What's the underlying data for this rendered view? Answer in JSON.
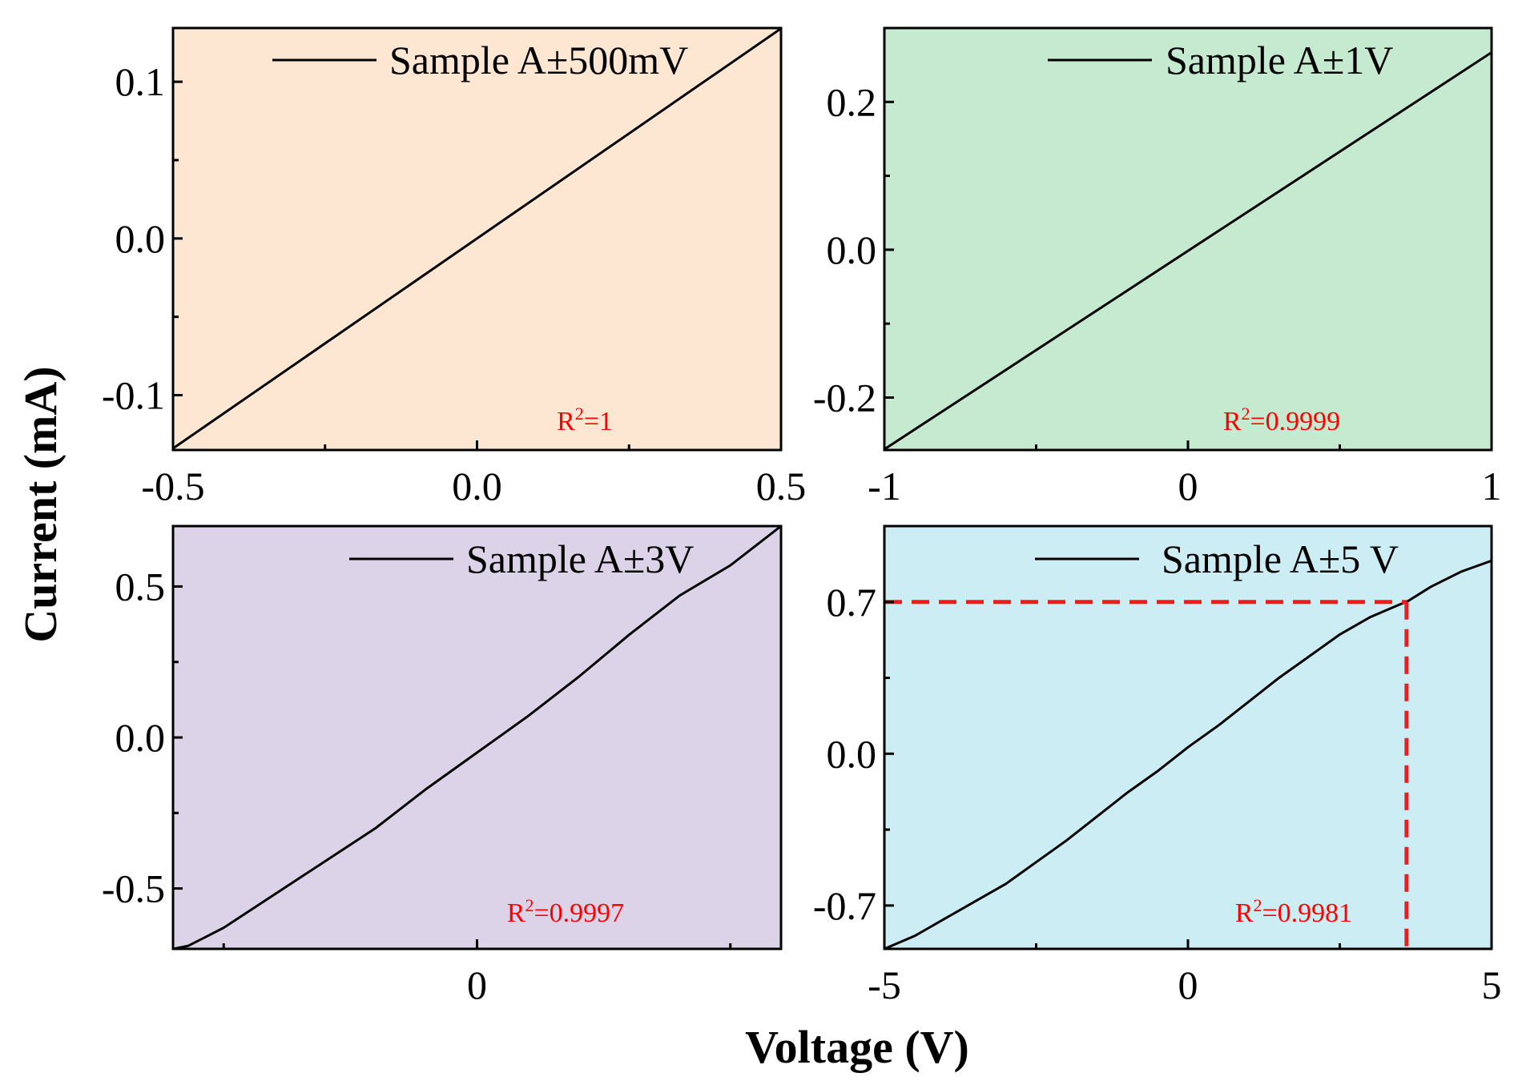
{
  "figure": {
    "xlabel": "Voltage (V)",
    "ylabel": "Current (mA)"
  },
  "chart_data": [
    {
      "type": "line",
      "panel": "top-left",
      "bg_color": "#fde7d2",
      "legend": "Sample A±500mV",
      "annotation": {
        "base": "R",
        "sup": "2",
        "rest": "=1",
        "color": "#ff0000"
      },
      "xlim": [
        -0.5,
        0.5
      ],
      "ylim": [
        -0.135,
        0.1343
      ],
      "xticks": [
        -0.5,
        0.0,
        0.5
      ],
      "xtick_labels": [
        "-0.5",
        "0.0",
        "0.5"
      ],
      "xminor": [
        -0.25,
        0.25
      ],
      "yticks": [
        -0.1,
        0.0,
        0.1
      ],
      "ytick_labels": [
        "-0.1",
        "0.0",
        "0.1"
      ],
      "yminor": [
        -0.05,
        0.05
      ],
      "series": [
        {
          "name": "Sample A±500mV",
          "x": [
            -0.5,
            0.5
          ],
          "y": [
            -0.134,
            0.134
          ]
        }
      ]
    },
    {
      "type": "line",
      "panel": "top-right",
      "bg_color": "#c5ead0",
      "legend": "Sample A±1V",
      "annotation": {
        "base": "R",
        "sup": "2",
        "rest": "=0.9999",
        "color": "#ff0000"
      },
      "xlim": [
        -1,
        1
      ],
      "ylim": [
        -0.271,
        0.3
      ],
      "xticks": [
        -1,
        0,
        1
      ],
      "xtick_labels": [
        "-1",
        "0",
        "1"
      ],
      "xminor": [
        -0.5,
        0.5
      ],
      "yticks": [
        -0.2,
        0.0,
        0.2
      ],
      "ytick_labels": [
        "-0.2",
        "0.0",
        "0.2"
      ],
      "yminor": [
        -0.1,
        0.1
      ],
      "series": [
        {
          "name": "Sample A±1V",
          "x": [
            -1,
            1
          ],
          "y": [
            -0.27,
            0.267
          ]
        }
      ]
    },
    {
      "type": "line",
      "panel": "bottom-left",
      "bg_color": "#ddd3e8",
      "legend": "Sample A±3V",
      "annotation": {
        "base": "R",
        "sup": "2",
        "rest": "=0.9997",
        "color": "#ff0000"
      },
      "xlim": [
        -3,
        3
      ],
      "ylim": [
        -0.7,
        0.7
      ],
      "xticks": [
        0
      ],
      "xtick_labels": [
        "0"
      ],
      "xminor": [
        -2.5,
        2.5
      ],
      "yticks": [
        -0.5,
        0.0,
        0.5
      ],
      "ytick_labels": [
        "-0.5",
        "0.0",
        "0.5"
      ],
      "yminor": [
        -0.25,
        0.25
      ],
      "series": [
        {
          "name": "Sample A±3V",
          "x": [
            -3,
            -2.85,
            -2.5,
            -2.0,
            -1.5,
            -1.0,
            -0.5,
            0.0,
            0.5,
            1.0,
            1.5,
            2.0,
            2.5,
            3.0
          ],
          "y": [
            -0.7,
            -0.69,
            -0.63,
            -0.52,
            -0.41,
            -0.3,
            -0.17,
            -0.05,
            0.07,
            0.2,
            0.34,
            0.47,
            0.57,
            0.7
          ]
        }
      ]
    },
    {
      "type": "line",
      "panel": "bottom-right",
      "bg_color": "#cbedf3",
      "legend": "Sample A±5 V",
      "annotation": {
        "base": "R",
        "sup": "2",
        "rest": "=0.9981",
        "color": "#ff0000"
      },
      "xlim": [
        -5,
        5
      ],
      "ylim": [
        -0.9,
        1.05
      ],
      "xticks": [
        -5,
        0,
        5
      ],
      "xtick_labels": [
        "-5",
        "0",
        "5"
      ],
      "xminor": [
        -2.5,
        2.5
      ],
      "yticks": [
        -0.7,
        0.0,
        0.7
      ],
      "ytick_labels": [
        "-0.7",
        "0.0",
        "0.7"
      ],
      "yminor": [
        -0.35,
        0.35
      ],
      "series": [
        {
          "name": "Sample A±5 V",
          "x": [
            -5,
            -4.5,
            -4.0,
            -3.5,
            -3.0,
            -2.5,
            -2.0,
            -1.5,
            -1.0,
            -0.5,
            0.0,
            0.5,
            1.0,
            1.5,
            2.0,
            2.5,
            3.0,
            3.5,
            3.6,
            4.0,
            4.5,
            5.0
          ],
          "y": [
            -0.9,
            -0.84,
            -0.76,
            -0.68,
            -0.6,
            -0.5,
            -0.4,
            -0.29,
            -0.18,
            -0.08,
            0.03,
            0.13,
            0.24,
            0.35,
            0.45,
            0.55,
            0.63,
            0.69,
            0.7,
            0.77,
            0.84,
            0.89
          ]
        }
      ],
      "guide": {
        "x": 3.6,
        "y": 0.7,
        "color": "#ee1c1c",
        "style": "dashed"
      }
    }
  ]
}
